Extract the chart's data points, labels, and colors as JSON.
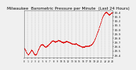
{
  "title": "Milwaukee  Barometric Pressure per Minute  (Last 24 Hours)",
  "bg_color": "#f0f0f0",
  "plot_bg_color": "#f0f0f0",
  "line_color": "#dd0000",
  "grid_color": "#888888",
  "text_color": "#000000",
  "ylim": [
    29.35,
    30.45
  ],
  "yticks": [
    29.4,
    29.5,
    29.6,
    29.7,
    29.8,
    29.9,
    30.0,
    30.1,
    30.2,
    30.3,
    30.4
  ],
  "num_points": 1440,
  "pressure_profile": [
    29.57,
    29.54,
    29.5,
    29.46,
    29.43,
    29.42,
    29.44,
    29.47,
    29.5,
    29.53,
    29.51,
    29.48,
    29.44,
    29.42,
    29.41,
    29.43,
    29.47,
    29.52,
    29.56,
    29.6,
    29.63,
    29.65,
    29.66,
    29.65,
    29.63,
    29.61,
    29.6,
    29.6,
    29.61,
    29.63,
    29.65,
    29.67,
    29.69,
    29.71,
    29.73,
    29.74,
    29.74,
    29.73,
    29.72,
    29.72,
    29.73,
    29.74,
    29.75,
    29.75,
    29.74,
    29.73,
    29.72,
    29.71,
    29.7,
    29.7,
    29.71,
    29.72,
    29.73,
    29.73,
    29.72,
    29.71,
    29.7,
    29.69,
    29.68,
    29.67,
    29.67,
    29.67,
    29.67,
    29.67,
    29.67,
    29.66,
    29.65,
    29.64,
    29.63,
    29.62,
    29.61,
    29.6,
    29.6,
    29.6,
    29.6,
    29.61,
    29.62,
    29.62,
    29.62,
    29.62,
    29.62,
    29.63,
    29.64,
    29.65,
    29.67,
    29.7,
    29.73,
    29.77,
    29.82,
    29.87,
    29.92,
    29.97,
    30.02,
    30.08,
    30.14,
    30.2,
    30.26,
    30.31,
    30.35,
    30.38,
    30.4,
    30.41,
    30.4,
    30.38,
    30.36,
    30.35,
    30.36,
    30.38,
    30.4,
    30.4
  ],
  "x_tick_count": 25,
  "marker_size": 0.7,
  "title_fontsize": 4.2,
  "tick_fontsize": 2.8,
  "x_label_fontsize": 2.2
}
